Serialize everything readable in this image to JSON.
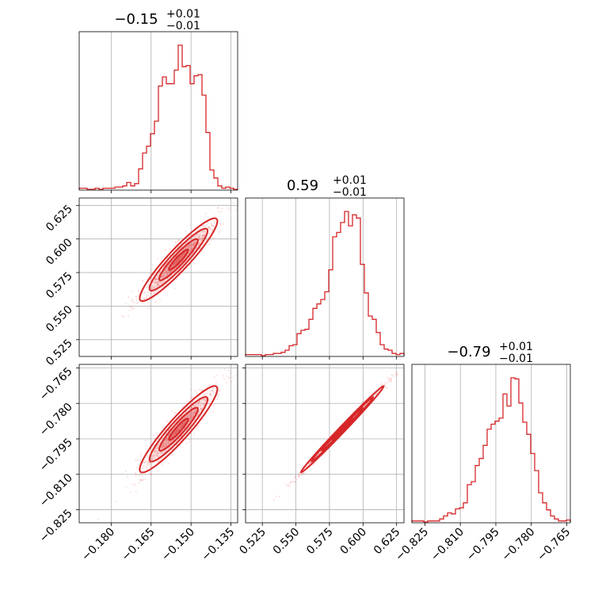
{
  "chart_data": {
    "type": "corner",
    "color": "#d62728",
    "titles": [
      {
        "value": "−0.15",
        "plus": "+0.01",
        "minus": "−0.01"
      },
      {
        "value": "0.59",
        "plus": "+0.01",
        "minus": "−0.01"
      },
      {
        "value": "−0.79",
        "plus": "+0.01",
        "minus": "−0.01"
      }
    ],
    "params": [
      {
        "range": [
          -0.192,
          -0.1325
        ],
        "ticks": [
          -0.18,
          -0.165,
          -0.15,
          -0.135
        ],
        "tick_labels": [
          "−0.180",
          "−0.165",
          "−0.150",
          "−0.135"
        ],
        "hist_start": -0.192,
        "hist_end": -0.1325,
        "hist": [
          1,
          1,
          0,
          0,
          1,
          0,
          1,
          1,
          1,
          2,
          2,
          3,
          6,
          3,
          5,
          18,
          32,
          38,
          49,
          60,
          91,
          99,
          93,
          93,
          105,
          127,
          108,
          109,
          93,
          100,
          101,
          83,
          50,
          17,
          10,
          3,
          1,
          2,
          1,
          0
        ]
      },
      {
        "range": [
          0.5125,
          0.6305
        ],
        "ticks": [
          0.525,
          0.55,
          0.575,
          0.6,
          0.625
        ],
        "tick_labels": [
          "0.525",
          "0.550",
          "0.575",
          "0.600",
          "0.625"
        ],
        "hist_start": 0.5125,
        "hist_end": 0.6305,
        "hist": [
          1,
          1,
          1,
          1,
          0,
          1,
          1,
          2,
          2,
          3,
          5,
          9,
          10,
          20,
          23,
          24,
          33,
          43,
          47,
          51,
          58,
          78,
          108,
          112,
          121,
          131,
          118,
          128,
          125,
          83,
          57,
          36,
          33,
          21,
          10,
          6,
          5,
          2,
          1,
          2
        ]
      },
      {
        "range": [
          -0.8305,
          -0.7635
        ],
        "ticks": [
          -0.825,
          -0.81,
          -0.795,
          -0.78,
          -0.765
        ],
        "tick_labels": [
          "−0.825",
          "−0.810",
          "−0.795",
          "−0.780",
          "−0.765"
        ],
        "hist_start": -0.8305,
        "hist_end": -0.7635,
        "hist": [
          1,
          1,
          1,
          0,
          1,
          1,
          1,
          3,
          6,
          9,
          8,
          13,
          14,
          19,
          37,
          40,
          56,
          63,
          76,
          92,
          97,
          100,
          103,
          127,
          115,
          143,
          142,
          118,
          99,
          87,
          68,
          51,
          29,
          19,
          12,
          6,
          3,
          1,
          1,
          2
        ]
      }
    ],
    "correlations": {
      "r10": 0.93,
      "r20": 0.93,
      "r21": 0.995
    },
    "density_levels": [
      0.118,
      0.393,
      0.675,
      0.865
    ]
  }
}
